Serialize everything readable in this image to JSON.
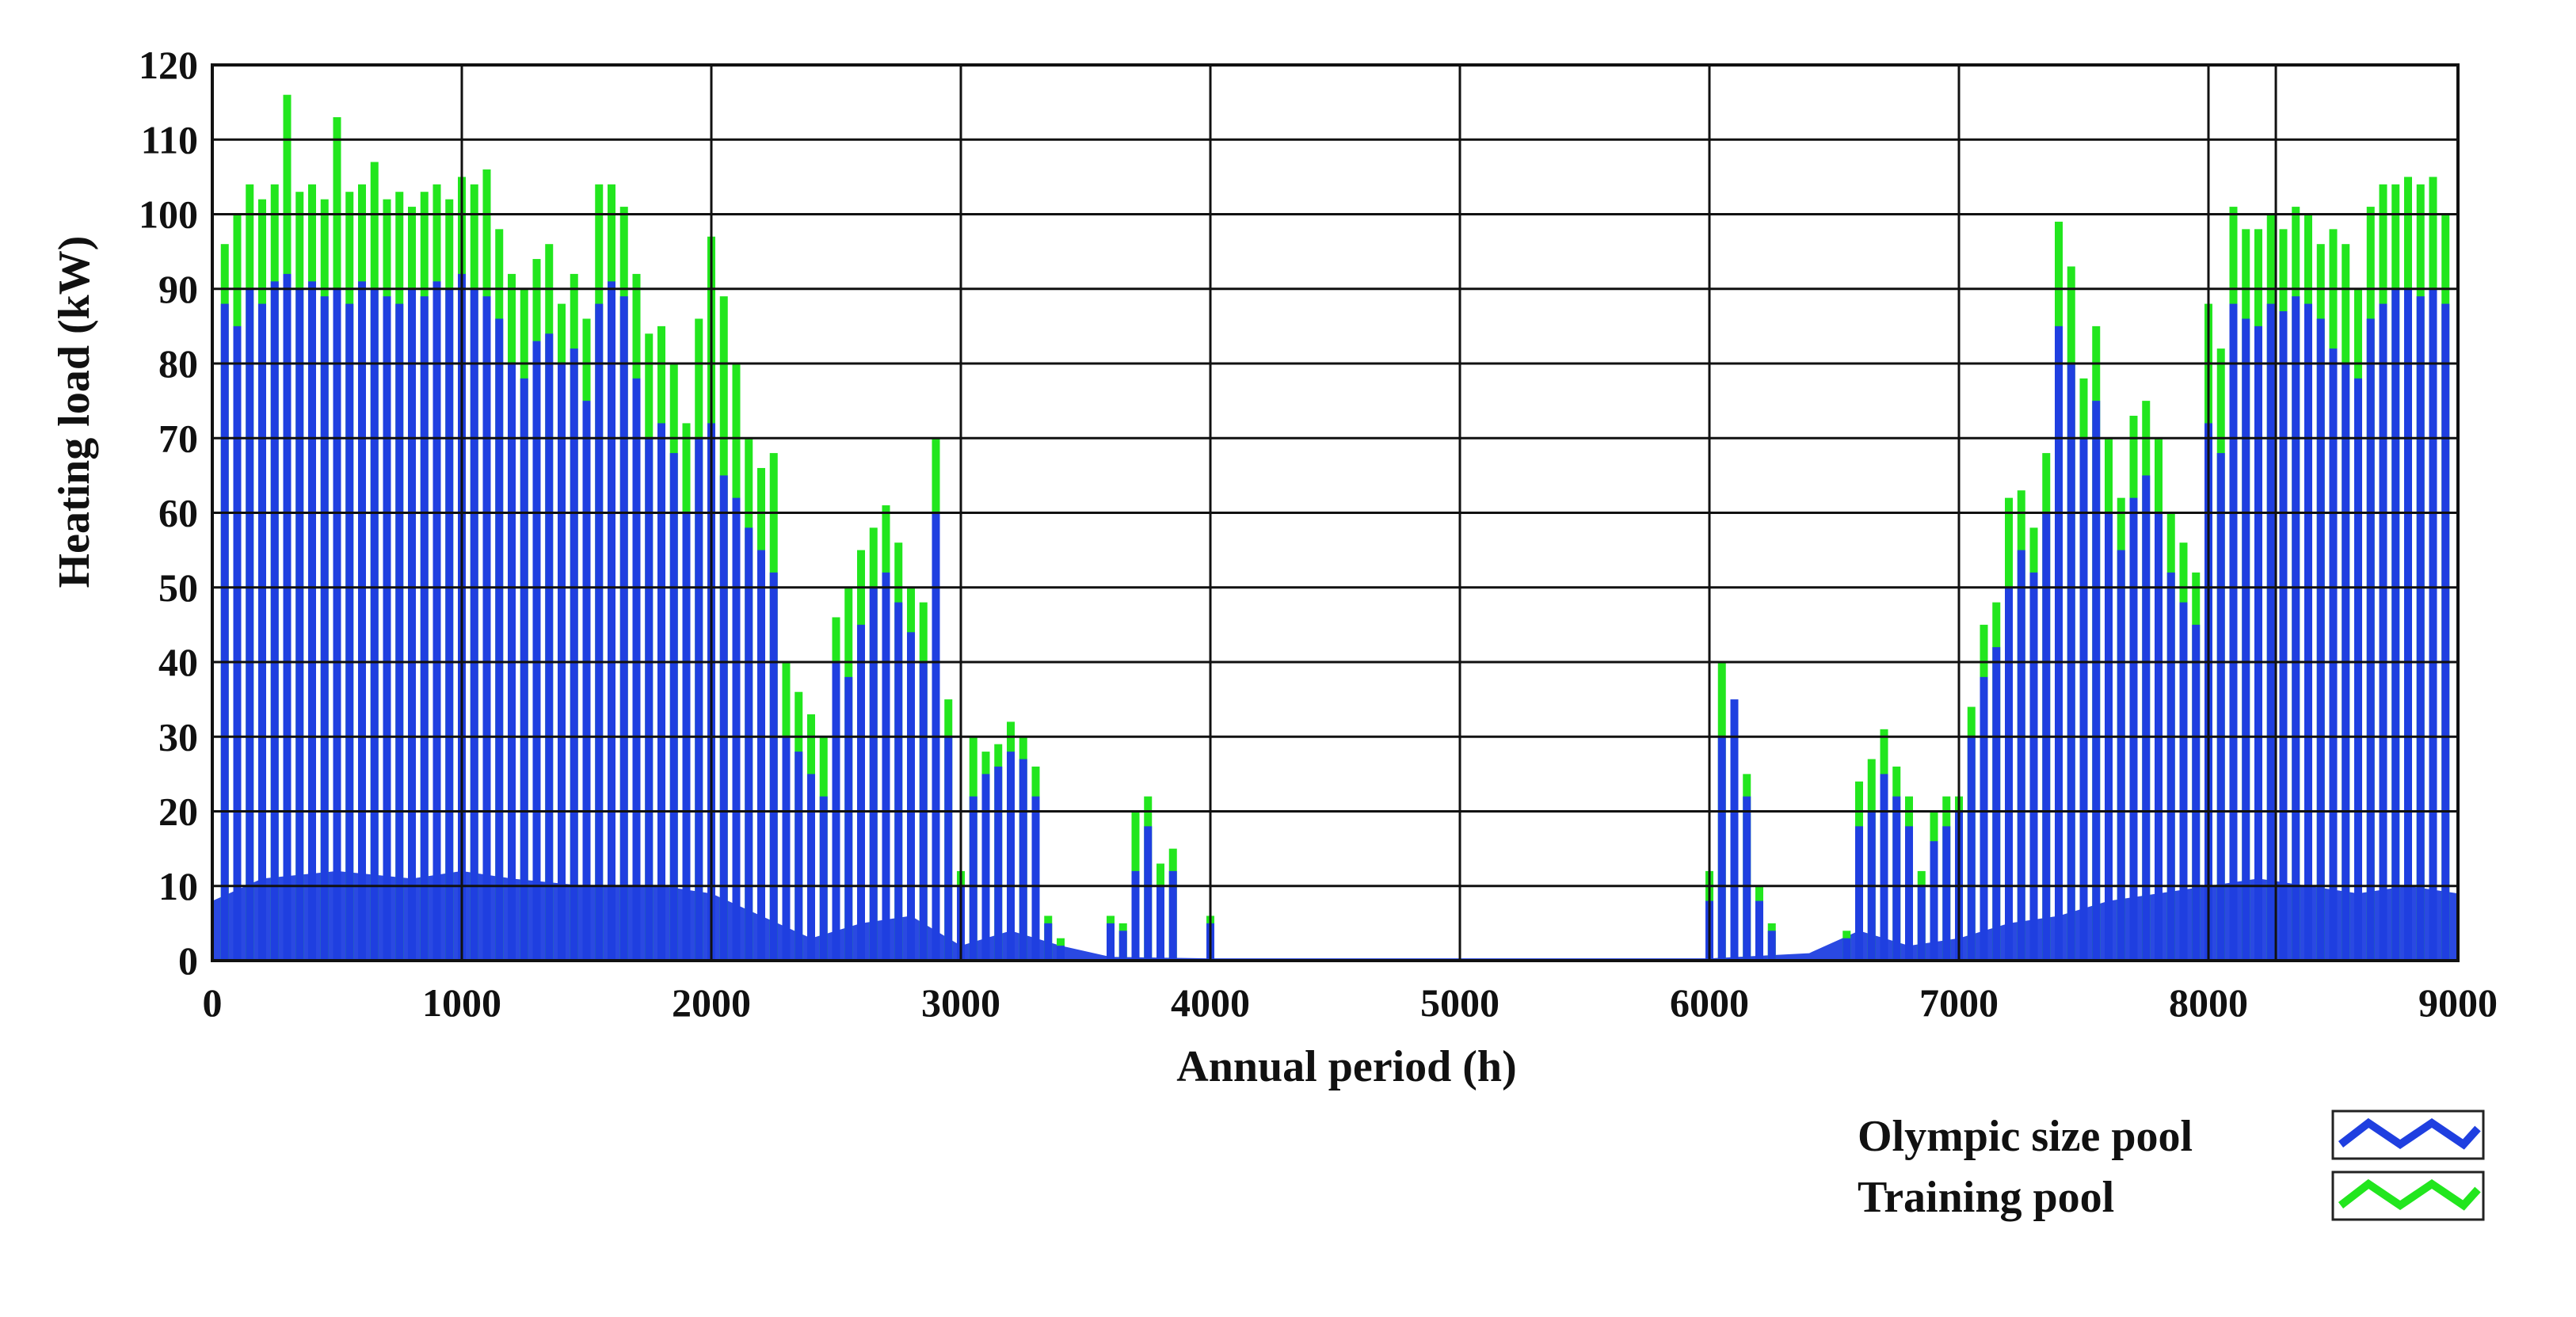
{
  "chart_data": {
    "type": "bar",
    "xlabel": "Annual period (h)",
    "ylabel": "Heating load (kW)",
    "xlim": [
      0,
      9000
    ],
    "ylim": [
      0,
      120
    ],
    "xticks": [
      0,
      1000,
      2000,
      3000,
      4000,
      5000,
      6000,
      7000,
      8000,
      9000
    ],
    "xtick_labels": [
      "0",
      "1000",
      "2000",
      "3000",
      "4000",
      "5000",
      "6000",
      "7000",
      "8000",
      "9000"
    ],
    "yticks": [
      0,
      10,
      20,
      30,
      40,
      50,
      60,
      70,
      80,
      90,
      100,
      110,
      120
    ],
    "ytick_labels": [
      "0",
      "10",
      "20",
      "30",
      "40",
      "50",
      "60",
      "70",
      "80",
      "90",
      "100",
      "110",
      "120"
    ],
    "grid": true,
    "extra_vertical_gridline": 8270,
    "legend_position": "bottom-right",
    "series": [
      {
        "name": "Olympic size pool",
        "color": "#1f3fe0",
        "marker_icon": "blue-zigzag-line-icon",
        "description_of_shape": "hourly heating load; dense spikes ~80-93 kW in winter, ~25-60 kW in spring/autumn, near 0 in summer",
        "x": [
          50,
          100,
          150,
          200,
          250,
          300,
          350,
          400,
          450,
          500,
          550,
          600,
          650,
          700,
          750,
          800,
          850,
          900,
          950,
          1000,
          1050,
          1100,
          1150,
          1200,
          1250,
          1300,
          1350,
          1400,
          1450,
          1500,
          1550,
          1600,
          1650,
          1700,
          1750,
          1800,
          1850,
          1900,
          1950,
          2000,
          2050,
          2100,
          2150,
          2200,
          2250,
          2300,
          2350,
          2400,
          2450,
          2500,
          2550,
          2600,
          2650,
          2700,
          2750,
          2800,
          2850,
          2900,
          2950,
          3000,
          3050,
          3100,
          3150,
          3200,
          3250,
          3300,
          3350,
          3400,
          3600,
          3650,
          3700,
          3750,
          3800,
          3850,
          4000,
          6000,
          6050,
          6100,
          6150,
          6200,
          6250,
          6550,
          6600,
          6650,
          6700,
          6750,
          6800,
          6850,
          6900,
          6950,
          7000,
          7050,
          7100,
          7150,
          7200,
          7250,
          7300,
          7350,
          7400,
          7450,
          7500,
          7550,
          7600,
          7650,
          7700,
          7750,
          7800,
          7850,
          7900,
          7950,
          8000,
          8050,
          8100,
          8150,
          8200,
          8250,
          8300,
          8350,
          8400,
          8450,
          8500,
          8550,
          8600,
          8650,
          8700,
          8750,
          8800,
          8850,
          8900,
          8950
        ],
        "y": [
          88,
          85,
          90,
          88,
          91,
          92,
          90,
          91,
          89,
          90,
          88,
          91,
          90,
          89,
          88,
          90,
          89,
          91,
          90,
          92,
          90,
          89,
          86,
          80,
          78,
          83,
          84,
          80,
          82,
          75,
          88,
          91,
          89,
          78,
          70,
          72,
          68,
          60,
          70,
          72,
          65,
          62,
          58,
          55,
          52,
          30,
          28,
          25,
          22,
          40,
          38,
          45,
          50,
          52,
          48,
          44,
          40,
          60,
          30,
          10,
          22,
          25,
          26,
          28,
          27,
          22,
          5,
          2,
          5,
          4,
          12,
          18,
          10,
          12,
          5,
          8,
          30,
          35,
          22,
          8,
          4,
          3,
          18,
          20,
          25,
          22,
          18,
          10,
          16,
          18,
          20,
          30,
          38,
          42,
          50,
          55,
          52,
          60,
          85,
          80,
          70,
          75,
          60,
          55,
          62,
          65,
          60,
          52,
          48,
          45,
          72,
          68,
          88,
          86,
          85,
          88,
          87,
          89,
          88,
          86,
          82,
          80,
          78,
          86,
          88,
          90,
          90,
          89,
          90,
          88
        ]
      },
      {
        "name": "Training pool",
        "color": "#22e61e",
        "marker_icon": "green-zigzag-line-icon",
        "description_of_shape": "stacked above the Olympic pool load, peaks up to ~116 kW in winter",
        "x": [
          50,
          100,
          150,
          200,
          250,
          300,
          350,
          400,
          450,
          500,
          550,
          600,
          650,
          700,
          750,
          800,
          850,
          900,
          950,
          1000,
          1050,
          1100,
          1150,
          1200,
          1250,
          1300,
          1350,
          1400,
          1450,
          1500,
          1550,
          1600,
          1650,
          1700,
          1750,
          1800,
          1850,
          1900,
          1950,
          2000,
          2050,
          2100,
          2150,
          2200,
          2250,
          2300,
          2350,
          2400,
          2450,
          2500,
          2550,
          2600,
          2650,
          2700,
          2750,
          2800,
          2850,
          2900,
          2950,
          3000,
          3050,
          3100,
          3150,
          3200,
          3250,
          3300,
          3350,
          3400,
          3600,
          3650,
          3700,
          3750,
          3800,
          3850,
          4000,
          6000,
          6050,
          6100,
          6150,
          6200,
          6250,
          6550,
          6600,
          6650,
          6700,
          6750,
          6800,
          6850,
          6900,
          6950,
          7000,
          7050,
          7100,
          7150,
          7200,
          7250,
          7300,
          7350,
          7400,
          7450,
          7500,
          7550,
          7600,
          7650,
          7700,
          7750,
          7800,
          7850,
          7900,
          7950,
          8000,
          8050,
          8100,
          8150,
          8200,
          8250,
          8300,
          8350,
          8400,
          8450,
          8500,
          8550,
          8600,
          8650,
          8700,
          8750,
          8800,
          8850,
          8900,
          8950
        ],
        "y": [
          96,
          100,
          104,
          102,
          104,
          116,
          103,
          104,
          102,
          113,
          103,
          104,
          107,
          102,
          103,
          101,
          103,
          104,
          102,
          105,
          104,
          106,
          98,
          92,
          90,
          94,
          96,
          88,
          92,
          86,
          104,
          104,
          101,
          92,
          84,
          85,
          80,
          72,
          86,
          97,
          89,
          80,
          70,
          66,
          68,
          40,
          36,
          33,
          30,
          46,
          50,
          55,
          58,
          61,
          56,
          50,
          48,
          70,
          35,
          12,
          30,
          28,
          29,
          32,
          30,
          26,
          6,
          3,
          6,
          5,
          20,
          22,
          13,
          15,
          6,
          12,
          40,
          28,
          25,
          10,
          5,
          4,
          24,
          27,
          31,
          26,
          22,
          12,
          20,
          22,
          22,
          34,
          45,
          48,
          62,
          63,
          58,
          68,
          99,
          93,
          78,
          85,
          70,
          62,
          73,
          75,
          70,
          60,
          56,
          52,
          88,
          82,
          101,
          98,
          98,
          100,
          98,
          101,
          100,
          96,
          98,
          96,
          90,
          101,
          104,
          104,
          105,
          104,
          105,
          100
        ]
      }
    ],
    "baseline_series": {
      "name": "",
      "color": "#1f3fe0",
      "description_of_shape": "dense low-level hourly load floor",
      "x": [
        0,
        200,
        500,
        800,
        1000,
        1200,
        1500,
        1800,
        2000,
        2200,
        2400,
        2600,
        2800,
        3000,
        3200,
        3400,
        3600,
        4000,
        6000,
        6400,
        6600,
        6800,
        7000,
        7200,
        7400,
        7600,
        7800,
        8000,
        8200,
        8400,
        8600,
        8800,
        9000
      ],
      "y": [
        8,
        11,
        12,
        11,
        12,
        11,
        10,
        10,
        9,
        6,
        3,
        5,
        6,
        2,
        4,
        2,
        0.5,
        0.3,
        0.3,
        1,
        4,
        2,
        3,
        5,
        6,
        8,
        9,
        10,
        11,
        10,
        9,
        10,
        9
      ]
    }
  }
}
